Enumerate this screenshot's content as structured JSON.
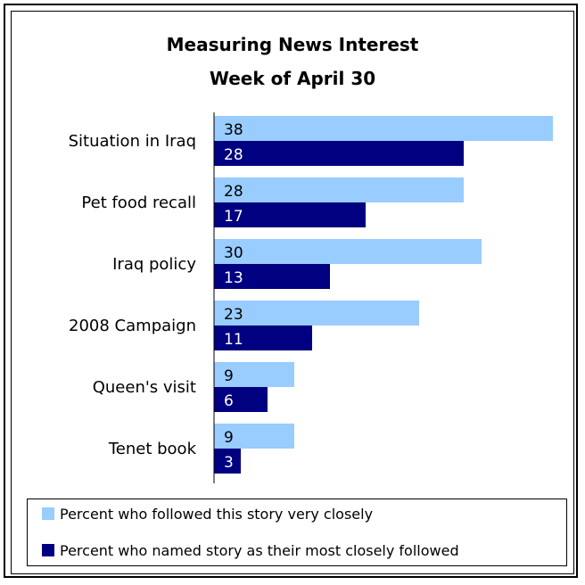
{
  "chart_data": {
    "type": "bar",
    "orientation": "horizontal",
    "title": "Measuring News Interest",
    "subtitle": "Week of April 30",
    "categories": [
      "Situation in Iraq",
      "Pet food recall",
      "Iraq policy",
      "2008 Campaign",
      "Queen's visit",
      "Tenet book"
    ],
    "series": [
      {
        "name": "Percent who followed this story very closely",
        "color": "#99ccff",
        "label_color": "#000000",
        "values": [
          38,
          28,
          30,
          23,
          9,
          9
        ]
      },
      {
        "name": "Percent who named story as their most closely followed",
        "color": "#000080",
        "label_color": "#ffffff",
        "values": [
          28,
          17,
          13,
          11,
          6,
          3
        ]
      }
    ],
    "xlim": [
      0,
      40
    ],
    "grid": false,
    "legend_position": "bottom"
  }
}
